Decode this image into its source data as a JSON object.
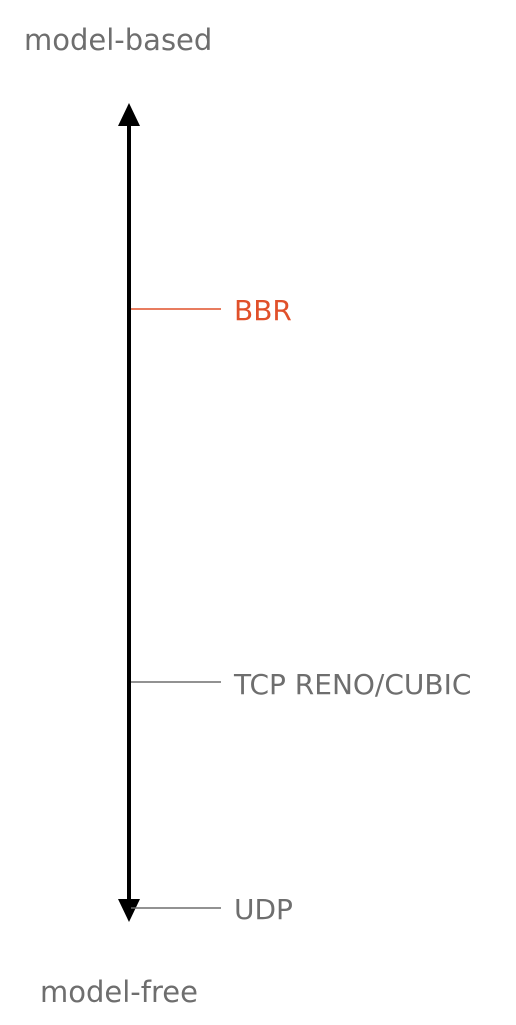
{
  "axis": {
    "top_label": "model-based",
    "bottom_label": "model-free"
  },
  "markers": [
    {
      "label": "BBR",
      "color": "#e0502a"
    },
    {
      "label": "TCP RENO/CUBIC",
      "color": "#6e6e6e"
    },
    {
      "label": "UDP",
      "color": "#6e6e6e"
    }
  ],
  "colors": {
    "axis": "#000000",
    "text": "#6e6e6e",
    "accent": "#e0502a"
  }
}
